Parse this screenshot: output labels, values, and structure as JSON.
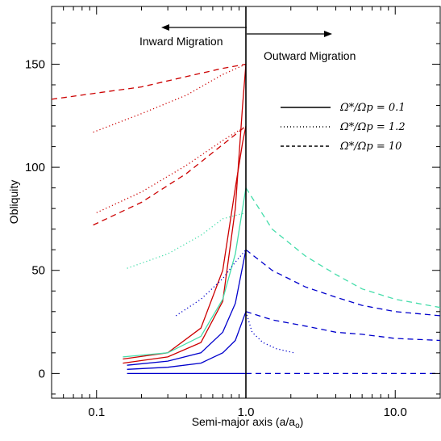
{
  "chart_data": {
    "type": "line",
    "title": "",
    "xlabel": "Semi-major axis (a/a",
    "xlabel_sub": "o",
    "xlabel_close": ")",
    "ylabel": "Obliquity",
    "xscale": "log",
    "xlim": [
      0.05,
      20
    ],
    "ylim": [
      -12,
      178
    ],
    "xticks": [
      {
        "value": 0.1,
        "label": "0.1"
      },
      {
        "value": 1.0,
        "label": "1.0"
      },
      {
        "value": 10.0,
        "label": "10.0"
      }
    ],
    "yticks": [
      {
        "value": 0,
        "label": "0"
      },
      {
        "value": 50,
        "label": "50"
      },
      {
        "value": 100,
        "label": "100"
      },
      {
        "value": 150,
        "label": "150"
      }
    ],
    "grid": false,
    "annotations": {
      "inward": "Inward Migration",
      "outward": "Outward Migration",
      "divider_x": 1.0
    },
    "legend": {
      "placement": "upper-right",
      "entries": [
        {
          "label": "Ω*/Ωp = 0.1",
          "style": "solid"
        },
        {
          "label": "Ω*/Ωp = 1.2",
          "style": "dotted"
        },
        {
          "label": "Ω*/Ωp = 10",
          "style": "dashed"
        }
      ]
    },
    "series": [
      {
        "color": "#cc0000",
        "style": "dashed",
        "points": [
          [
            0.05,
            133
          ],
          [
            0.1,
            136
          ],
          [
            0.2,
            139
          ],
          [
            0.4,
            144
          ],
          [
            0.7,
            148
          ],
          [
            1.0,
            150
          ]
        ]
      },
      {
        "color": "#cc0000",
        "style": "dotted",
        "points": [
          [
            0.095,
            117
          ],
          [
            0.2,
            126
          ],
          [
            0.4,
            135
          ],
          [
            0.7,
            145
          ],
          [
            1.0,
            150
          ]
        ]
      },
      {
        "color": "#cc0000",
        "style": "dashed",
        "points": [
          [
            0.095,
            72
          ],
          [
            0.2,
            83
          ],
          [
            0.4,
            97
          ],
          [
            0.7,
            111
          ],
          [
            1.0,
            120
          ]
        ]
      },
      {
        "color": "#cc0000",
        "style": "dotted",
        "points": [
          [
            0.1,
            78
          ],
          [
            0.2,
            88
          ],
          [
            0.4,
            101
          ],
          [
            0.7,
            113
          ],
          [
            1.0,
            120
          ]
        ]
      },
      {
        "color": "#cc0000",
        "style": "solid",
        "points": [
          [
            0.15,
            5
          ],
          [
            0.3,
            8
          ],
          [
            0.5,
            15
          ],
          [
            0.7,
            35
          ],
          [
            0.85,
            80
          ],
          [
            0.95,
            130
          ],
          [
            1.0,
            150
          ]
        ]
      },
      {
        "color": "#cc0000",
        "style": "solid",
        "points": [
          [
            0.15,
            7
          ],
          [
            0.3,
            10
          ],
          [
            0.5,
            22
          ],
          [
            0.7,
            50
          ],
          [
            0.85,
            90
          ],
          [
            0.95,
            112
          ],
          [
            1.0,
            120
          ]
        ]
      },
      {
        "color": "#44ddaa",
        "style": "dotted",
        "points": [
          [
            0.16,
            51
          ],
          [
            0.3,
            58
          ],
          [
            0.5,
            67
          ],
          [
            0.7,
            75
          ],
          [
            1.0,
            78
          ]
        ]
      },
      {
        "color": "#44ddaa",
        "style": "solid",
        "points": [
          [
            0.15,
            8
          ],
          [
            0.3,
            10
          ],
          [
            0.5,
            18
          ],
          [
            0.7,
            36
          ],
          [
            0.85,
            58
          ],
          [
            1.0,
            90
          ]
        ]
      },
      {
        "color": "#44ddaa",
        "style": "dashed",
        "points": [
          [
            1.0,
            90
          ],
          [
            1.5,
            70
          ],
          [
            2.5,
            57
          ],
          [
            4,
            48
          ],
          [
            6,
            41
          ],
          [
            10,
            36
          ],
          [
            20,
            32
          ]
        ]
      },
      {
        "color": "#0000cc",
        "style": "solid",
        "points": [
          [
            0.16,
            4
          ],
          [
            0.3,
            6
          ],
          [
            0.5,
            10
          ],
          [
            0.7,
            20
          ],
          [
            0.85,
            34
          ],
          [
            1.0,
            60
          ]
        ]
      },
      {
        "color": "#0000cc",
        "style": "solid",
        "points": [
          [
            0.16,
            2
          ],
          [
            0.3,
            3
          ],
          [
            0.5,
            5
          ],
          [
            0.7,
            10
          ],
          [
            0.85,
            16
          ],
          [
            1.0,
            30
          ]
        ]
      },
      {
        "color": "#0000cc",
        "style": "solid",
        "points": [
          [
            0.16,
            0
          ],
          [
            1.0,
            0
          ]
        ]
      },
      {
        "color": "#0000cc",
        "style": "dotted",
        "points": [
          [
            0.34,
            28
          ],
          [
            0.5,
            36
          ],
          [
            0.7,
            46
          ],
          [
            0.85,
            54
          ],
          [
            1.0,
            60
          ]
        ]
      },
      {
        "color": "#0000cc",
        "style": "dotted",
        "points": [
          [
            1.0,
            30
          ],
          [
            1.1,
            20
          ],
          [
            1.3,
            15
          ],
          [
            1.6,
            12
          ],
          [
            2.1,
            10
          ]
        ]
      },
      {
        "color": "#0000cc",
        "style": "dashed",
        "points": [
          [
            1.0,
            60
          ],
          [
            1.5,
            50
          ],
          [
            2.5,
            42
          ],
          [
            4,
            37
          ],
          [
            6,
            33
          ],
          [
            10,
            30
          ],
          [
            20,
            28
          ]
        ]
      },
      {
        "color": "#0000cc",
        "style": "dashed",
        "points": [
          [
            1.0,
            30
          ],
          [
            1.5,
            26
          ],
          [
            2.5,
            23
          ],
          [
            4,
            20
          ],
          [
            6,
            19
          ],
          [
            10,
            17
          ],
          [
            20,
            16
          ]
        ]
      },
      {
        "color": "#0000cc",
        "style": "dashed",
        "points": [
          [
            1.0,
            0
          ],
          [
            20,
            0
          ]
        ]
      }
    ]
  }
}
